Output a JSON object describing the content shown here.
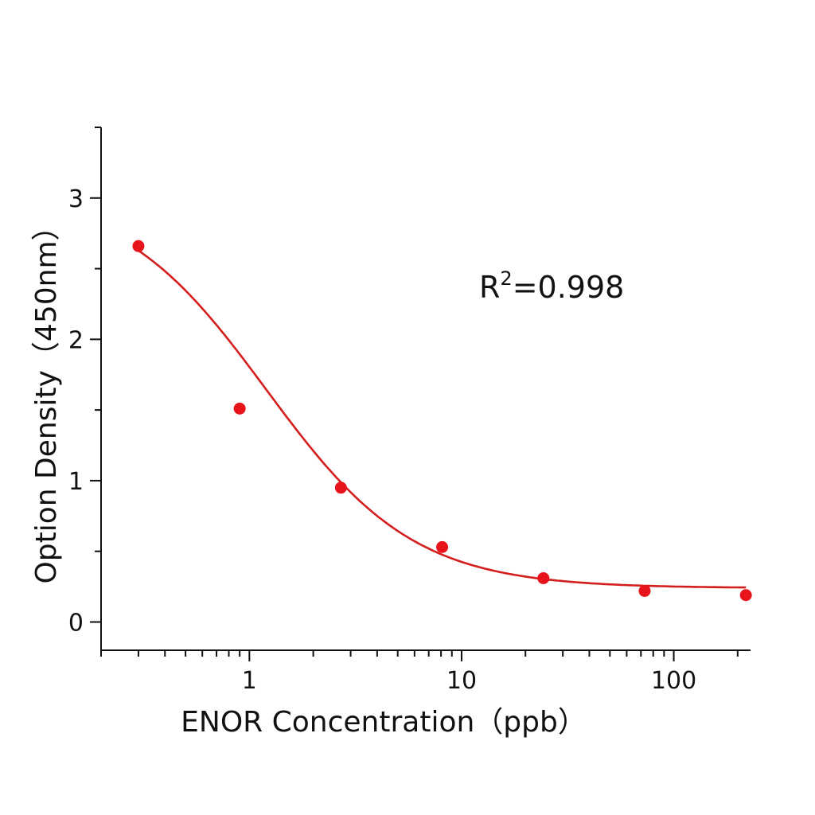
{
  "chart_data": {
    "type": "scatter",
    "title": "",
    "xlabel": "ENOR Concentration（ppb）",
    "ylabel": "Option Density（450nm）",
    "xscale": "log",
    "xlim": [
      0.2,
      230
    ],
    "ylim": [
      -0.2,
      3.5
    ],
    "x_tick_labels": [
      "1",
      "10",
      "100"
    ],
    "y_tick_labels": [
      "0",
      "1",
      "2",
      "3"
    ],
    "grid": false,
    "legend": "none",
    "series": [
      {
        "x": [
          0.3,
          0.9,
          2.7,
          8.1,
          24.3,
          72.9,
          218.7
        ],
        "y": [
          2.66,
          1.51,
          0.95,
          0.53,
          0.31,
          0.22,
          0.19
        ],
        "color": "#e8141c"
      }
    ],
    "fit": {
      "type": "four-parameter logistic",
      "color": "#d41e1e",
      "top": 3.05,
      "bottom": 0.24,
      "ec50": 1.2,
      "hill": 1.25,
      "x_range": [
        0.3,
        218.7
      ]
    },
    "annotation": {
      "text": "R",
      "sup": "2",
      "value": "=0.998"
    }
  }
}
